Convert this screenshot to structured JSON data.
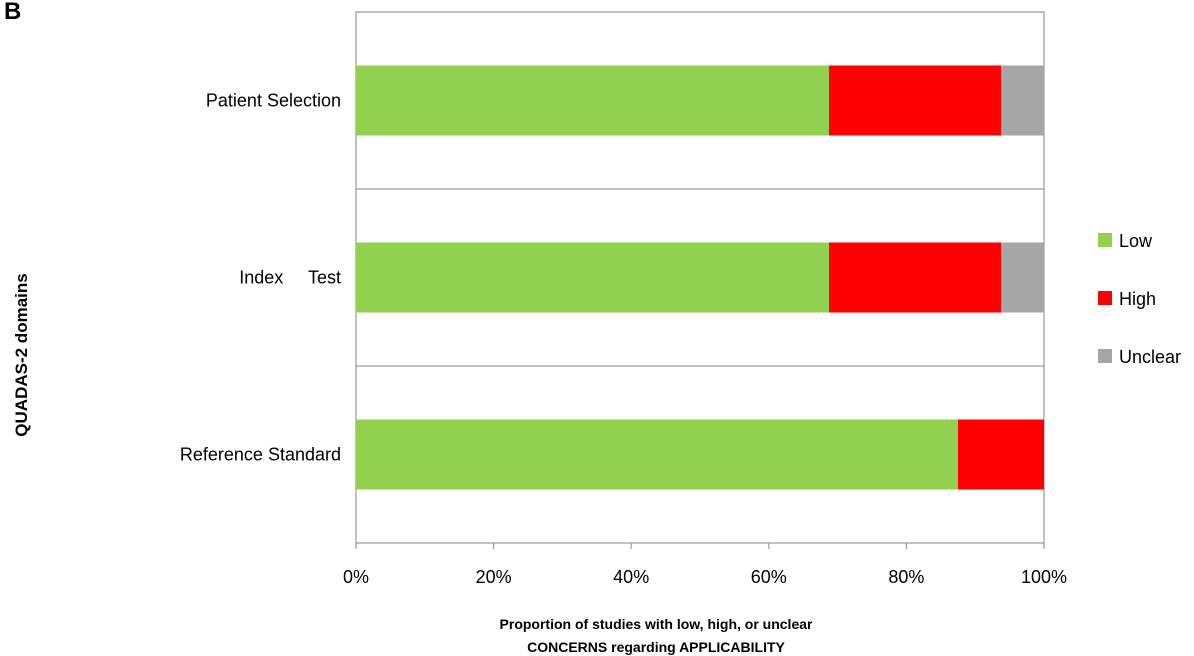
{
  "panel_label": "B",
  "chart_data": {
    "type": "bar",
    "orientation": "horizontal",
    "stacked": true,
    "categories": [
      "Patient Selection",
      "Index     Test",
      "Reference Standard"
    ],
    "series": [
      {
        "name": "Low",
        "color": "#92d050",
        "values": [
          68.75,
          68.75,
          87.5
        ]
      },
      {
        "name": "High",
        "color": "#ff0000",
        "values": [
          25.0,
          25.0,
          12.5
        ]
      },
      {
        "name": "Unclear",
        "color": "#a6a6a6",
        "values": [
          6.25,
          6.25,
          0
        ]
      }
    ],
    "xlim": [
      0,
      100
    ],
    "xticks": [
      0,
      20,
      40,
      60,
      80,
      100
    ],
    "xtick_labels": [
      "0%",
      "20%",
      "40%",
      "60%",
      "80%",
      "100%"
    ],
    "xlabel_lines": [
      "Proportion of studies with low, high, or unclear",
      "CONCERNS regarding APPLICABILITY"
    ],
    "ylabel": "QUADAS-2 domains",
    "legend_position": "right",
    "grid": "horizontal category separators"
  }
}
